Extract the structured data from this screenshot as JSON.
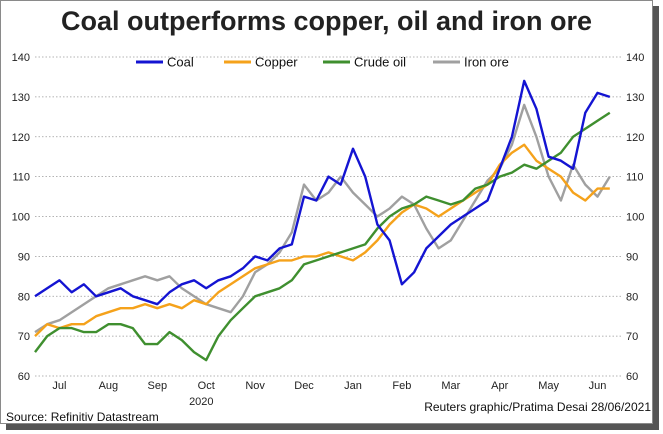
{
  "title": "Coal outperforms copper, oil and iron ore",
  "source": "Source: Refinitiv Datastream",
  "credit": "Reuters graphic/Pratima Desai 28/06/2021",
  "chart_data": {
    "type": "line",
    "title": "Coal outperforms copper, oil and iron ore",
    "xlabel": "",
    "ylabel": "",
    "ylim": [
      60,
      140
    ],
    "yticks": [
      60,
      70,
      80,
      90,
      100,
      110,
      120,
      130,
      140
    ],
    "x_tick_labels": [
      "Jul",
      "Aug",
      "Sep",
      "Oct",
      "Nov",
      "Dec",
      "Jan",
      "Feb",
      "Mar",
      "Apr",
      "May",
      "Jun"
    ],
    "x_tick_positions": [
      1,
      2,
      3,
      4,
      5,
      6,
      7,
      8,
      9,
      10,
      11,
      12
    ],
    "year_label": "2020",
    "xlim": [
      0.5,
      12.5
    ],
    "grid": true,
    "legend": "top",
    "colors": {
      "Coal": "#1414d2",
      "Copper": "#f5a21b",
      "Crude oil": "#3f8f2f",
      "Iron ore": "#a0a0a0"
    },
    "x": [
      0.5,
      0.75,
      1.0,
      1.25,
      1.5,
      1.75,
      2.0,
      2.25,
      2.5,
      2.75,
      3.0,
      3.25,
      3.5,
      3.75,
      4.0,
      4.25,
      4.5,
      4.75,
      5.0,
      5.25,
      5.5,
      5.75,
      6.0,
      6.25,
      6.5,
      6.75,
      7.0,
      7.25,
      7.5,
      7.75,
      8.0,
      8.25,
      8.5,
      8.75,
      9.0,
      9.25,
      9.5,
      9.75,
      10.0,
      10.25,
      10.5,
      10.75,
      11.0,
      11.25,
      11.5,
      11.75,
      12.0,
      12.25
    ],
    "series": [
      {
        "name": "Coal",
        "values": [
          80,
          82,
          84,
          81,
          83,
          80,
          81,
          82,
          80,
          79,
          78,
          81,
          83,
          84,
          82,
          84,
          85,
          87,
          90,
          89,
          92,
          93,
          105,
          104,
          110,
          108,
          117,
          110,
          98,
          94,
          83,
          86,
          92,
          95,
          98,
          100,
          102,
          104,
          112,
          120,
          134,
          127,
          115,
          114,
          112,
          126,
          131,
          130
        ]
      },
      {
        "name": "Copper",
        "values": [
          70,
          73,
          72,
          73,
          73,
          75,
          76,
          77,
          77,
          78,
          77,
          78,
          77,
          79,
          78,
          81,
          83,
          85,
          87,
          88,
          89,
          89,
          90,
          90,
          91,
          90,
          89,
          91,
          94,
          98,
          101,
          103,
          102,
          100,
          102,
          104,
          106,
          108,
          113,
          116,
          118,
          114,
          112,
          110,
          106,
          104,
          107,
          107
        ]
      },
      {
        "name": "Crude oil",
        "values": [
          66,
          70,
          72,
          72,
          71,
          71,
          73,
          73,
          72,
          68,
          68,
          71,
          69,
          66,
          64,
          70,
          74,
          77,
          80,
          81,
          82,
          84,
          88,
          89,
          90,
          91,
          92,
          93,
          97,
          100,
          102,
          103,
          105,
          104,
          103,
          104,
          107,
          108,
          110,
          111,
          113,
          112,
          114,
          116,
          120,
          122,
          124,
          126
        ]
      },
      {
        "name": "Iron ore",
        "values": [
          71,
          73,
          74,
          76,
          78,
          80,
          82,
          83,
          84,
          85,
          84,
          85,
          82,
          80,
          78,
          77,
          76,
          80,
          86,
          88,
          91,
          96,
          108,
          104,
          106,
          110,
          106,
          103,
          100,
          102,
          105,
          103,
          97,
          92,
          94,
          99,
          104,
          109,
          112,
          118,
          128,
          120,
          110,
          104,
          113,
          108,
          105,
          110
        ]
      }
    ]
  }
}
